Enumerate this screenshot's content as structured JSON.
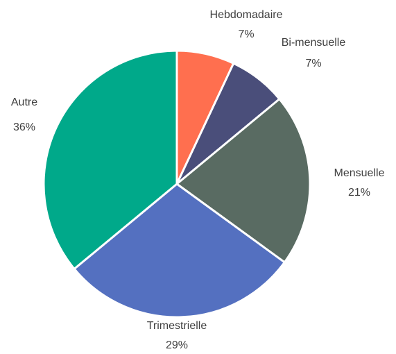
{
  "chart_data": {
    "type": "pie",
    "categories": [
      "Hebdomadaire",
      "Bi-mensuelle",
      "Mensuelle",
      "Trimestrielle",
      "Autre"
    ],
    "values": [
      7,
      7,
      21,
      29,
      36
    ],
    "value_labels": [
      "7%",
      "7%",
      "21%",
      "29%",
      "36%"
    ],
    "colors": [
      "#ff6f4f",
      "#4a4e7a",
      "#596b62",
      "#5470c0",
      "#00a98a"
    ],
    "legend": false
  }
}
